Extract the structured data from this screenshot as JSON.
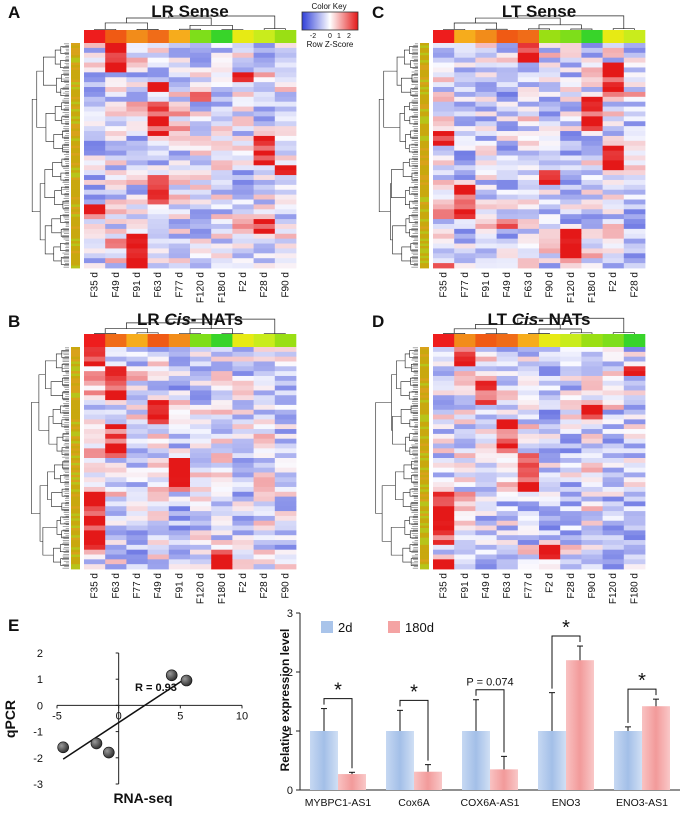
{
  "colors": {
    "heat_low": "#2f3fd8",
    "heat_mid": "#ffffff",
    "heat_high": "#e41818",
    "bar_2d": "#a9c4ea",
    "bar_180d": "#f4a3a3",
    "sample_colors": {
      "F2": "#e7ea14",
      "F28": "#c9ec1c",
      "F90": "#9adf14",
      "F35": "#ee1d1d",
      "F49": "#f05a14",
      "F91": "#f28c1a",
      "F63": "#f06c18",
      "F77": "#f6ac1c",
      "F120": "#7ede1a",
      "F180": "#38d42a"
    }
  },
  "color_key": {
    "title": "Color Key",
    "ticks": [
      "-2",
      "0",
      "1",
      "2"
    ],
    "label": "Row Z-Score"
  },
  "panels": [
    {
      "letter": "A",
      "title_pre": "LR Sense",
      "title_italic": "",
      "title_post": "",
      "rows": 46,
      "seed": 11,
      "samples": [
        "F35 d",
        "F49 d",
        "F91 d",
        "F63 d",
        "F77 d",
        "F120 d",
        "F180 d",
        "F2 d",
        "F28 d",
        "F90 d"
      ]
    },
    {
      "letter": "C",
      "title_pre": "LT Sense",
      "title_italic": "",
      "title_post": "",
      "rows": 46,
      "seed": 23,
      "samples": [
        "F35 d",
        "F77 d",
        "F91 d",
        "F49 d",
        "F63 d",
        "F90 d",
        "F120 d",
        "F180 d",
        "F2 d",
        "F28 d"
      ]
    },
    {
      "letter": "B",
      "title_pre": "LR ",
      "title_italic": "Cis",
      "title_post": "- NATs",
      "rows": 46,
      "seed": 37,
      "samples": [
        "F35 d",
        "F63 d",
        "F77 d",
        "F49 d",
        "F91 d",
        "F120 d",
        "F180 d",
        "F2 d",
        "F28 d",
        "F90 d"
      ]
    },
    {
      "letter": "D",
      "title_pre": "LT ",
      "title_italic": "Cis",
      "title_post": "- NATs",
      "rows": 46,
      "seed": 53,
      "samples": [
        "F35 d",
        "F91 d",
        "F49 d",
        "F63 d",
        "F77 d",
        "F2 d",
        "F28 d",
        "F90 d",
        "F120 d",
        "F180 d"
      ]
    }
  ],
  "panel_e_letter": "E",
  "chart_data": [
    {
      "type": "scatter",
      "title": "",
      "xlabel": "RNA-seq",
      "ylabel": "qPCR",
      "xlim": [
        -5,
        10
      ],
      "ylim": [
        -3,
        2
      ],
      "xticks": [
        "-5",
        "0",
        "5",
        "10"
      ],
      "yticks": [
        "2",
        "1",
        "0",
        "-1",
        "-2",
        "-3"
      ],
      "points": [
        {
          "x": -4.5,
          "y": -1.6
        },
        {
          "x": -1.8,
          "y": -1.45
        },
        {
          "x": -0.8,
          "y": -1.8
        },
        {
          "x": 4.3,
          "y": 1.15
        },
        {
          "x": 5.5,
          "y": 0.95
        }
      ],
      "fit_line": {
        "x": [
          -4.5,
          5.5
        ],
        "y": [
          -2.05,
          1.05
        ]
      },
      "annotation": "R = 0.93"
    },
    {
      "type": "bar",
      "title": "",
      "xlabel": "",
      "ylabel": "Relative expression level",
      "ylim": [
        0,
        3
      ],
      "yticks": [
        "0",
        "1",
        "2",
        "3"
      ],
      "categories": [
        "MYBPC1-AS1",
        "Cox6A",
        "COX6A-AS1",
        "ENO3",
        "ENO3-AS1"
      ],
      "series": [
        {
          "name": "2d",
          "values": [
            1,
            1,
            1,
            1,
            1
          ],
          "errors": [
            0.38,
            0.35,
            0.53,
            0.65,
            0.07
          ]
        },
        {
          "name": "180d",
          "values": [
            0.27,
            0.31,
            0.35,
            2.2,
            1.42
          ],
          "errors": [
            0.03,
            0.12,
            0.22,
            0.24,
            0.12
          ]
        }
      ],
      "significance": [
        "*",
        "*",
        "P = 0.074",
        "*",
        "*"
      ],
      "legend": "top-left"
    }
  ]
}
